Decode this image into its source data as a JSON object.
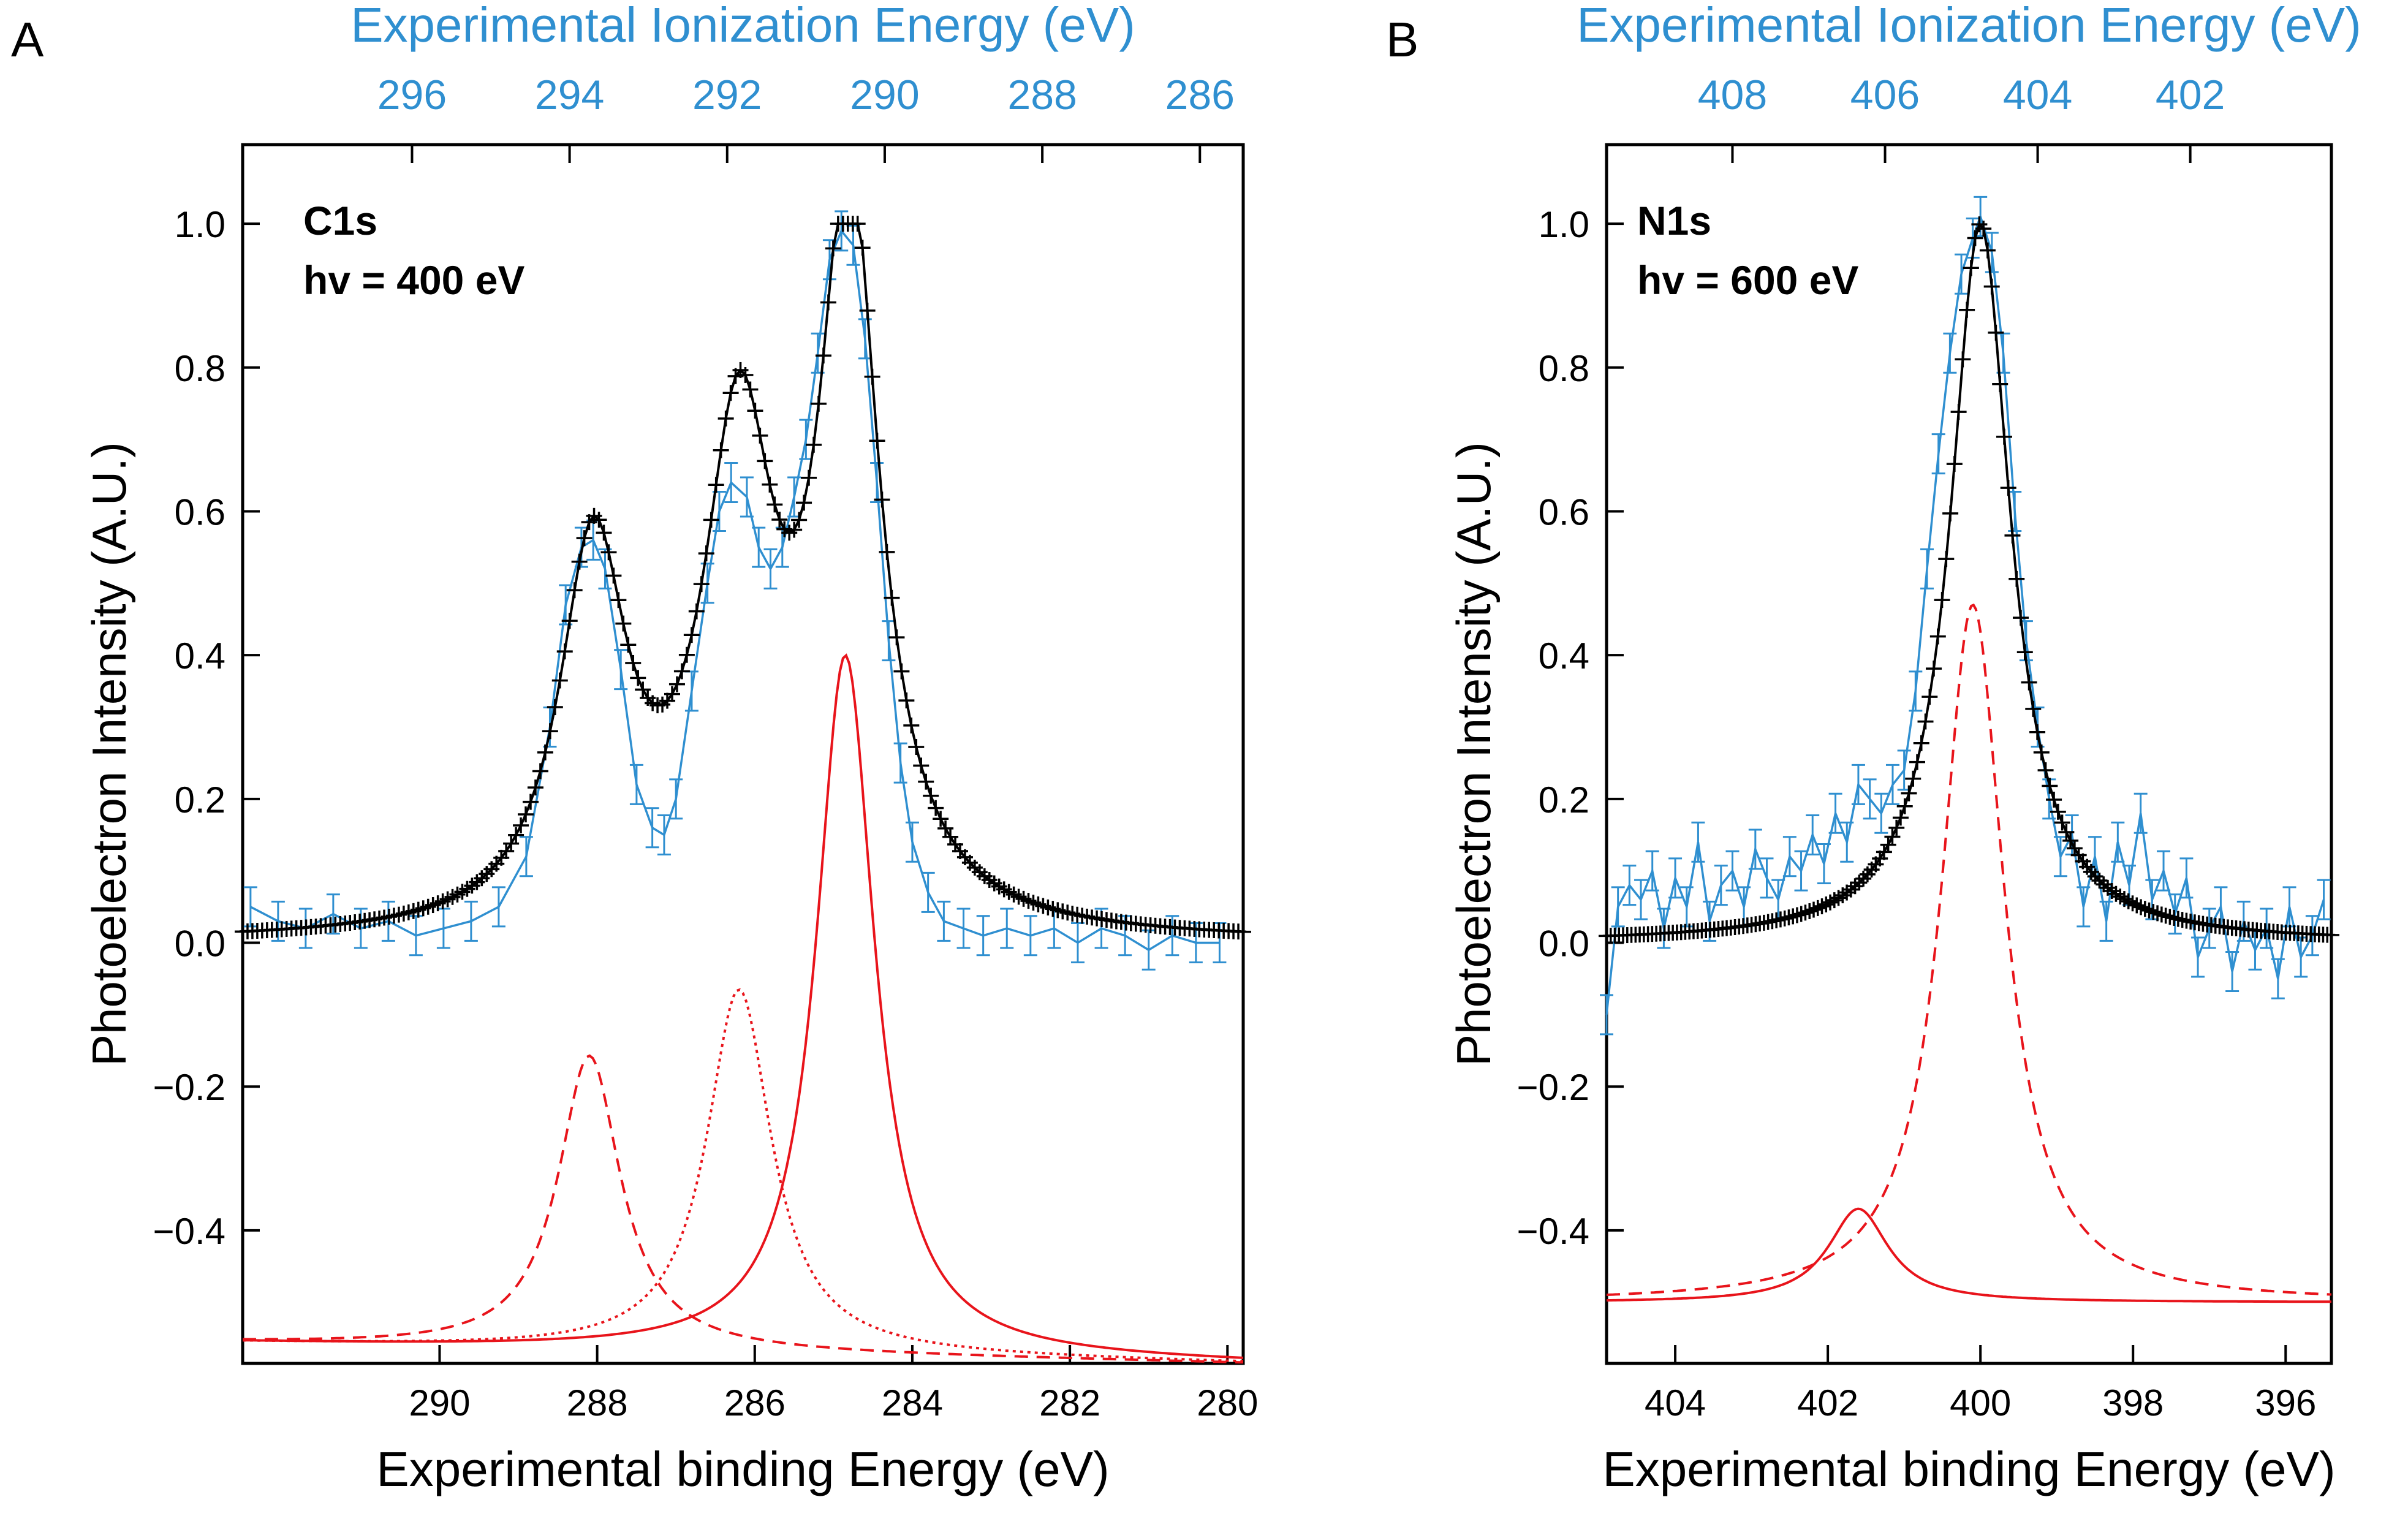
{
  "colors": {
    "black": "#000000",
    "blue": "#2f8fd0",
    "red": "#e8141b",
    "axis": "#000000"
  },
  "chart_data": [
    {
      "panel_label": "A",
      "type": "line",
      "annotation": [
        "C1s",
        "hv = 400 eV"
      ],
      "top_xlabel": "Experimental Ionization Energy (eV)",
      "top_ticks": [
        "296",
        "294",
        "292",
        "290",
        "288",
        "286"
      ],
      "top_tick_values": [
        296,
        294,
        292,
        290,
        288,
        286
      ],
      "top_offset": 5.65,
      "xlabel": "Experimental binding Energy (eV)",
      "xticks": [
        "290",
        "288",
        "286",
        "284",
        "282",
        "280"
      ],
      "xtick_values": [
        290,
        288,
        286,
        284,
        282,
        280
      ],
      "ylabel": "Photoelectron Intensity (A.U.)",
      "yticks": [
        "1.0",
        "0.8",
        "0.6",
        "0.4",
        "0.2",
        "0.0",
        "−0.2",
        "−0.4"
      ],
      "ytick_values": [
        1.0,
        0.8,
        0.6,
        0.4,
        0.2,
        0.0,
        -0.2,
        -0.4
      ],
      "xlim": [
        292.5,
        279.8
      ],
      "ylim": [
        -0.585,
        1.11
      ],
      "baseline": -0.555,
      "theory_peaks": [
        {
          "name": "C1s peak 1",
          "center": 288.05,
          "height": 0.52,
          "width": 0.52
        },
        {
          "name": "C1s peak 2",
          "center": 286.2,
          "height": 0.66,
          "width": 0.55
        },
        {
          "name": "C1s peak 3",
          "center": 284.8,
          "height": 1.0,
          "width": 0.46
        }
      ],
      "components": [
        {
          "name": "component 1",
          "style": "dashed",
          "center": 288.1,
          "peak": -0.157,
          "width": 0.48,
          "edge_left": -0.556,
          "edge_right": -0.585
        },
        {
          "name": "component 2",
          "style": "dotted",
          "center": 286.2,
          "peak": -0.065,
          "width": 0.5,
          "edge_left": -0.556,
          "edge_right": -0.585
        },
        {
          "name": "component 3",
          "style": "solid",
          "center": 284.85,
          "peak": 0.4,
          "width": 0.45,
          "edge_left": -0.556,
          "edge_right": -0.585
        }
      ],
      "experimental": [
        [
          292.4,
          0.05
        ],
        [
          292.05,
          0.03
        ],
        [
          291.7,
          0.02
        ],
        [
          291.35,
          0.04
        ],
        [
          291.0,
          0.02
        ],
        [
          290.65,
          0.03
        ],
        [
          290.3,
          0.01
        ],
        [
          289.95,
          0.02
        ],
        [
          289.6,
          0.03
        ],
        [
          289.25,
          0.05
        ],
        [
          288.9,
          0.12
        ],
        [
          288.6,
          0.3
        ],
        [
          288.4,
          0.47
        ],
        [
          288.2,
          0.55
        ],
        [
          288.05,
          0.56
        ],
        [
          287.9,
          0.52
        ],
        [
          287.7,
          0.38
        ],
        [
          287.5,
          0.22
        ],
        [
          287.3,
          0.16
        ],
        [
          287.15,
          0.15
        ],
        [
          287.0,
          0.2
        ],
        [
          286.8,
          0.35
        ],
        [
          286.6,
          0.5
        ],
        [
          286.45,
          0.6
        ],
        [
          286.3,
          0.64
        ],
        [
          286.1,
          0.62
        ],
        [
          285.95,
          0.55
        ],
        [
          285.8,
          0.52
        ],
        [
          285.65,
          0.55
        ],
        [
          285.5,
          0.62
        ],
        [
          285.35,
          0.7
        ],
        [
          285.2,
          0.82
        ],
        [
          285.05,
          0.95
        ],
        [
          284.9,
          0.99
        ],
        [
          284.75,
          0.97
        ],
        [
          284.6,
          0.84
        ],
        [
          284.45,
          0.64
        ],
        [
          284.3,
          0.42
        ],
        [
          284.15,
          0.25
        ],
        [
          284.0,
          0.14
        ],
        [
          283.8,
          0.07
        ],
        [
          283.6,
          0.03
        ],
        [
          283.35,
          0.02
        ],
        [
          283.1,
          0.01
        ],
        [
          282.8,
          0.02
        ],
        [
          282.5,
          0.01
        ],
        [
          282.2,
          0.02
        ],
        [
          281.9,
          0.0
        ],
        [
          281.6,
          0.02
        ],
        [
          281.3,
          0.01
        ],
        [
          281.0,
          -0.01
        ],
        [
          280.7,
          0.01
        ],
        [
          280.4,
          0.0
        ],
        [
          280.1,
          0.0
        ]
      ]
    },
    {
      "panel_label": "B",
      "type": "line",
      "annotation": [
        "N1s",
        "hv = 600 eV"
      ],
      "top_xlabel": "Experimental Ionization Energy (eV)",
      "top_ticks": [
        "408",
        "406",
        "404",
        "402"
      ],
      "top_tick_values": [
        408,
        406,
        404,
        402
      ],
      "top_offset": 4.75,
      "xlabel": "Experimental binding Energy (eV)",
      "xticks": [
        "404",
        "402",
        "400",
        "398",
        "396"
      ],
      "xtick_values": [
        404,
        402,
        400,
        398,
        396
      ],
      "ylabel": "Photoelectron Intensity (A.U.)",
      "yticks": [
        "1.0",
        "0.8",
        "0.6",
        "0.4",
        "0.2",
        "0.0",
        "−0.2",
        "−0.4"
      ],
      "ytick_values": [
        1.0,
        0.8,
        0.6,
        0.4,
        0.2,
        0.0,
        -0.2,
        -0.4
      ],
      "xlim": [
        404.9,
        395.4
      ],
      "ylim": [
        -0.585,
        1.11
      ],
      "baseline": -0.5,
      "theory_peaks": [
        {
          "name": "N1s main peak",
          "center": 400.0,
          "height": 1.0,
          "width": 0.48
        }
      ],
      "components": [
        {
          "name": "component 1",
          "style": "solid",
          "center": 401.6,
          "peak": -0.37,
          "width": 0.48,
          "edge_left": -0.5,
          "edge_right": -0.5
        },
        {
          "name": "component 2",
          "style": "dashed",
          "center": 400.1,
          "peak": 0.47,
          "width": 0.5,
          "edge_left": -0.5,
          "edge_right": -0.5
        }
      ],
      "experimental": [
        [
          404.9,
          -0.1
        ],
        [
          404.75,
          0.05
        ],
        [
          404.6,
          0.08
        ],
        [
          404.45,
          0.06
        ],
        [
          404.3,
          0.1
        ],
        [
          404.15,
          0.02
        ],
        [
          404.0,
          0.09
        ],
        [
          403.85,
          0.05
        ],
        [
          403.7,
          0.14
        ],
        [
          403.55,
          0.03
        ],
        [
          403.4,
          0.08
        ],
        [
          403.25,
          0.1
        ],
        [
          403.1,
          0.05
        ],
        [
          402.95,
          0.13
        ],
        [
          402.8,
          0.09
        ],
        [
          402.65,
          0.06
        ],
        [
          402.5,
          0.12
        ],
        [
          402.35,
          0.1
        ],
        [
          402.2,
          0.15
        ],
        [
          402.05,
          0.11
        ],
        [
          401.9,
          0.18
        ],
        [
          401.75,
          0.14
        ],
        [
          401.6,
          0.22
        ],
        [
          401.45,
          0.2
        ],
        [
          401.3,
          0.18
        ],
        [
          401.15,
          0.22
        ],
        [
          401.0,
          0.24
        ],
        [
          400.85,
          0.35
        ],
        [
          400.7,
          0.52
        ],
        [
          400.55,
          0.68
        ],
        [
          400.4,
          0.82
        ],
        [
          400.25,
          0.93
        ],
        [
          400.1,
          0.98
        ],
        [
          400.0,
          1.01
        ],
        [
          399.85,
          0.96
        ],
        [
          399.7,
          0.82
        ],
        [
          399.55,
          0.6
        ],
        [
          399.4,
          0.42
        ],
        [
          399.25,
          0.3
        ],
        [
          399.1,
          0.2
        ],
        [
          398.95,
          0.12
        ],
        [
          398.8,
          0.15
        ],
        [
          398.65,
          0.05
        ],
        [
          398.5,
          0.12
        ],
        [
          398.35,
          0.03
        ],
        [
          398.2,
          0.14
        ],
        [
          398.05,
          0.08
        ],
        [
          397.9,
          0.18
        ],
        [
          397.75,
          0.06
        ],
        [
          397.6,
          0.1
        ],
        [
          397.45,
          0.04
        ],
        [
          397.3,
          0.09
        ],
        [
          397.15,
          -0.02
        ],
        [
          397.0,
          0.02
        ],
        [
          396.85,
          0.05
        ],
        [
          396.7,
          -0.04
        ],
        [
          396.55,
          0.03
        ],
        [
          396.4,
          -0.01
        ],
        [
          396.25,
          0.02
        ],
        [
          396.1,
          -0.05
        ],
        [
          395.95,
          0.05
        ],
        [
          395.8,
          -0.02
        ],
        [
          395.65,
          0.01
        ],
        [
          395.5,
          0.06
        ]
      ]
    }
  ]
}
